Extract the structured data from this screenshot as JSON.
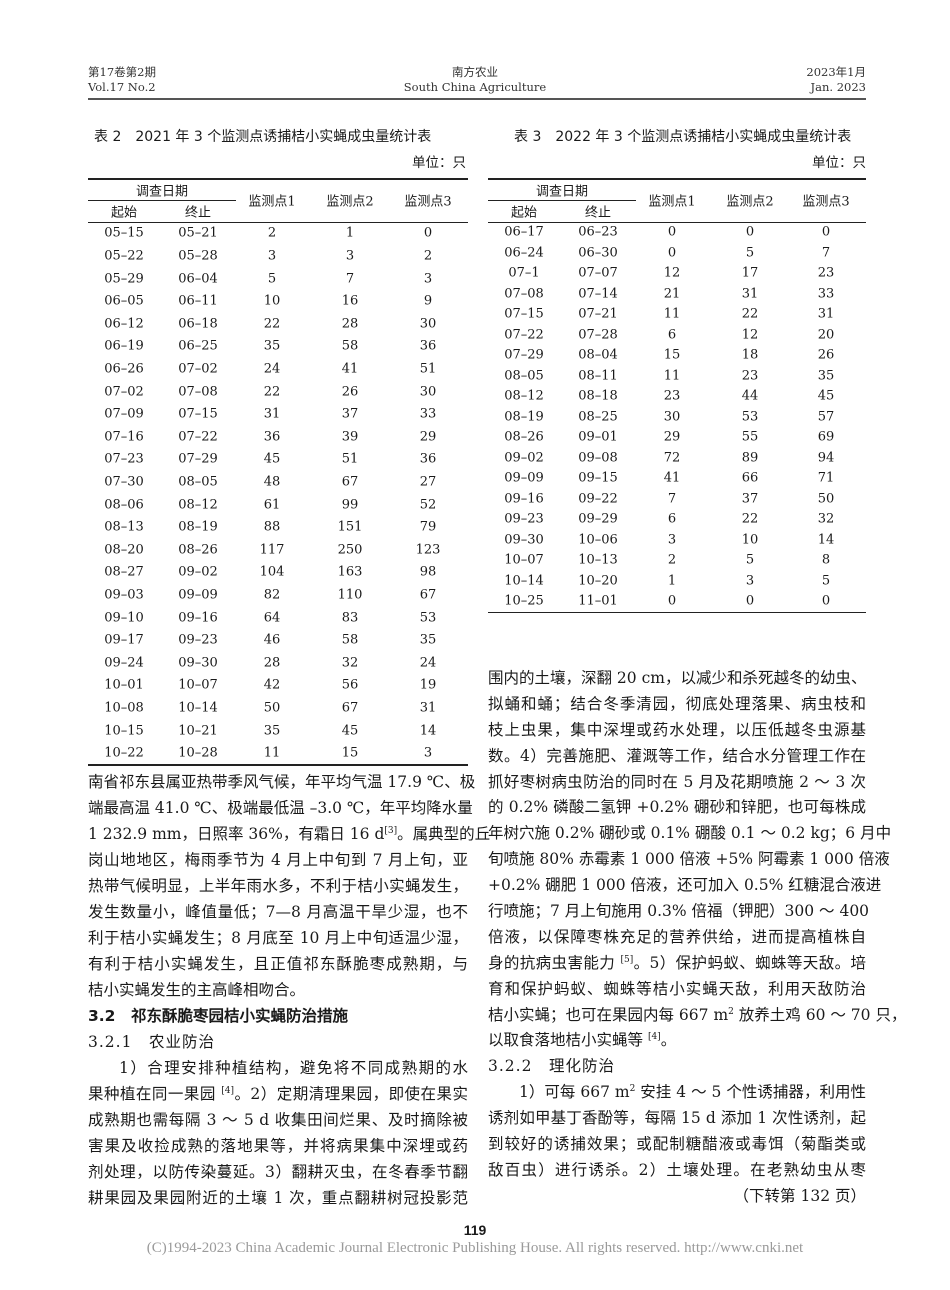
{
  "header": {
    "vol_cn": "第17卷第2期",
    "vol_en": "Vol.17 No.2",
    "journal_cn": "南方农业",
    "journal_en": "South China Agriculture",
    "date_cn": "2023年1月",
    "date_en": "Jan. 2023"
  },
  "tables": [
    {
      "title": "表 2　2021 年 3 个监测点诱捕桔小实蝇成虫量统计表",
      "unit": "单位：只",
      "group_header": "调查日期",
      "columns": [
        "起始",
        "终止",
        "监测点1",
        "监测点2",
        "监测点3"
      ],
      "rows": [
        [
          "05–15",
          "05–21",
          "2",
          "1",
          "0"
        ],
        [
          "05–22",
          "05–28",
          "3",
          "3",
          "2"
        ],
        [
          "05–29",
          "06–04",
          "5",
          "7",
          "3"
        ],
        [
          "06–05",
          "06–11",
          "10",
          "16",
          "9"
        ],
        [
          "06–12",
          "06–18",
          "22",
          "28",
          "30"
        ],
        [
          "06–19",
          "06–25",
          "35",
          "58",
          "36"
        ],
        [
          "06–26",
          "07–02",
          "24",
          "41",
          "51"
        ],
        [
          "07–02",
          "07–08",
          "22",
          "26",
          "30"
        ],
        [
          "07–09",
          "07–15",
          "31",
          "37",
          "33"
        ],
        [
          "07–16",
          "07–22",
          "36",
          "39",
          "29"
        ],
        [
          "07–23",
          "07–29",
          "45",
          "51",
          "36"
        ],
        [
          "07–30",
          "08–05",
          "48",
          "67",
          "27"
        ],
        [
          "08–06",
          "08–12",
          "61",
          "99",
          "52"
        ],
        [
          "08–13",
          "08–19",
          "88",
          "151",
          "79"
        ],
        [
          "08–20",
          "08–26",
          "117",
          "250",
          "123"
        ],
        [
          "08–27",
          "09–02",
          "104",
          "163",
          "98"
        ],
        [
          "09–03",
          "09–09",
          "82",
          "110",
          "67"
        ],
        [
          "09–10",
          "09–16",
          "64",
          "83",
          "53"
        ],
        [
          "09–17",
          "09–23",
          "46",
          "58",
          "35"
        ],
        [
          "09–24",
          "09–30",
          "28",
          "32",
          "24"
        ],
        [
          "10–01",
          "10–07",
          "42",
          "56",
          "19"
        ],
        [
          "10–08",
          "10–14",
          "50",
          "67",
          "31"
        ],
        [
          "10–15",
          "10–21",
          "35",
          "45",
          "14"
        ],
        [
          "10–22",
          "10–28",
          "11",
          "15",
          "3"
        ]
      ]
    },
    {
      "title": "表 3　2022 年 3 个监测点诱捕桔小实蝇成虫量统计表",
      "unit": "单位：只",
      "group_header": "调查日期",
      "columns": [
        "起始",
        "终止",
        "监测点1",
        "监测点2",
        "监测点3"
      ],
      "rows": [
        [
          "06–17",
          "06–23",
          "0",
          "0",
          "0"
        ],
        [
          "06–24",
          "06–30",
          "0",
          "5",
          "7"
        ],
        [
          "07–1",
          "07–07",
          "12",
          "17",
          "23"
        ],
        [
          "07–08",
          "07–14",
          "21",
          "31",
          "33"
        ],
        [
          "07–15",
          "07–21",
          "11",
          "22",
          "31"
        ],
        [
          "07–22",
          "07–28",
          "6",
          "12",
          "20"
        ],
        [
          "07–29",
          "08–04",
          "15",
          "18",
          "26"
        ],
        [
          "08–05",
          "08–11",
          "11",
          "23",
          "35"
        ],
        [
          "08–12",
          "08–18",
          "23",
          "44",
          "45"
        ],
        [
          "08–19",
          "08–25",
          "30",
          "53",
          "57"
        ],
        [
          "08–26",
          "09–01",
          "29",
          "55",
          "69"
        ],
        [
          "09–02",
          "09–08",
          "72",
          "89",
          "94"
        ],
        [
          "09–09",
          "09–15",
          "41",
          "66",
          "71"
        ],
        [
          "09–16",
          "09–22",
          "7",
          "37",
          "50"
        ],
        [
          "09–23",
          "09–29",
          "6",
          "22",
          "32"
        ],
        [
          "09–30",
          "10–06",
          "3",
          "10",
          "14"
        ],
        [
          "10–07",
          "10–13",
          "2",
          "5",
          "8"
        ],
        [
          "10–14",
          "10–20",
          "1",
          "3",
          "5"
        ],
        [
          "10–25",
          "11–01",
          "0",
          "0",
          "0"
        ]
      ]
    }
  ],
  "left_column": [
    {
      "t": "南省祁东县属亚热带季风气候，年平均气温 17.9 ℃、极"
    },
    {
      "t": "端最高温 41.0 ℃、极端最低温 –3.0 ℃，年平均降水量"
    },
    {
      "a": "1 232.9 mm，日照率 36%，有霜日 16 d",
      "s": "[3]",
      "b": "。属典型的丘"
    },
    {
      "t": "岗山地地区，梅雨季节为 4 月上中旬到 7 月上旬，亚"
    },
    {
      "t": "热带气候明显，上半年雨水多，不利于桔小实蝇发生，"
    },
    {
      "t": "发生数量小，峰值量低；7—8 月高温干旱少湿，也不"
    },
    {
      "t": "利于桔小实蝇发生；8 月底至 10 月上中旬适温少湿，"
    },
    {
      "t": "有利于桔小实蝇发生，且正值祁东酥脆枣成熟期，与"
    },
    {
      "t": "桔小实蝇发生的主高峰相吻合。",
      "cls": "end"
    },
    {
      "t": "3.2　祁东酥脆枣园桔小实蝇防治措施",
      "cls": "h1"
    },
    {
      "t": "3.2.1　农业防治",
      "cls": "h2"
    },
    {
      "t": "1）合理安排种植结构，避免将不同成熟期的水",
      "cls": "ind"
    },
    {
      "a": "果种植在同一果园 ",
      "s": "[4]",
      "b": "。2）定期清理果园，即使在果实"
    },
    {
      "t": "成熟期也需每隔 3 ～ 5 d 收集田间烂果、及时摘除被"
    },
    {
      "t": "害果及收捡成熟的落地果等，并将病果集中深埋或药"
    },
    {
      "t": "剂处理，以防传染蔓延。3）翻耕灭虫，在冬春季节翻"
    },
    {
      "t": "耕果园及果园附近的土壤 1 次，重点翻耕树冠投影范"
    }
  ],
  "right_column": [
    {
      "t": "围内的土壤，深翻 20 cm，以减少和杀死越冬的幼虫、"
    },
    {
      "t": "拟蛹和蛹；结合冬季清园，彻底处理落果、病虫枝和"
    },
    {
      "t": "枝上虫果，集中深埋或药水处理，以压低越冬虫源基"
    },
    {
      "t": "数。4）完善施肥、灌溉等工作，结合水分管理工作在"
    },
    {
      "t": "抓好枣树病虫防治的同时在 5 月及花期喷施 2 ～ 3 次"
    },
    {
      "t": "的 0.2% 磷酸二氢钾 +0.2% 硼砂和锌肥，也可每株成"
    },
    {
      "t": "年树穴施 0.2% 硼砂或 0.1% 硼酸 0.1 ～ 0.2 kg；6 月中"
    },
    {
      "t": "旬喷施 80% 赤霉素 1 000 倍液 +5% 阿霉素 1 000 倍液"
    },
    {
      "t": "+0.2% 硼肥 1 000 倍液，还可加入 0.5% 红糖混合液进"
    },
    {
      "t": "行喷施；7 月上旬施用 0.3% 倍福（钾肥）300 ～ 400"
    },
    {
      "t": "倍液，以保障枣株充足的营养供给，进而提高植株自"
    },
    {
      "a": "身的抗病虫害能力 ",
      "s": "[5]",
      "b": "。5）保护蚂蚁、蜘蛛等天敌。培"
    },
    {
      "t": "育和保护蚂蚁、蜘蛛等桔小实蝇天敌，利用天敌防治"
    },
    {
      "a": "桔小实蝇；也可在果园内每 667 m",
      "s": "2",
      "b": " 放养土鸡 60 ～ 70 只，"
    },
    {
      "a": "以取食落地桔小实蝇等 ",
      "s": "[4]",
      "b": "。",
      "cls": "end"
    },
    {
      "t": "3.2.2　理化防治",
      "cls": "h2"
    },
    {
      "a": "1）可每 667 m",
      "s": "2",
      "b": " 安挂 4 ～ 5 个性诱捕器，利用性",
      "cls": "ind"
    },
    {
      "t": "诱剂如甲基丁香酚等，每隔 15 d 添加 1 次性诱剂，起"
    },
    {
      "t": "到较好的诱捕效果；或配制糖醋液或毒饵（菊酯类或"
    },
    {
      "t": "敌百虫）进行诱杀。2）土壤处理。在老熟幼虫从枣"
    },
    {
      "t": "（下转第 132 页）",
      "cls": "right"
    }
  ],
  "footer": {
    "page_number": "119",
    "copyright": "(C)1994-2023 China Academic Journal Electronic Publishing House. All rights reserved.    http://www.cnki.net"
  }
}
